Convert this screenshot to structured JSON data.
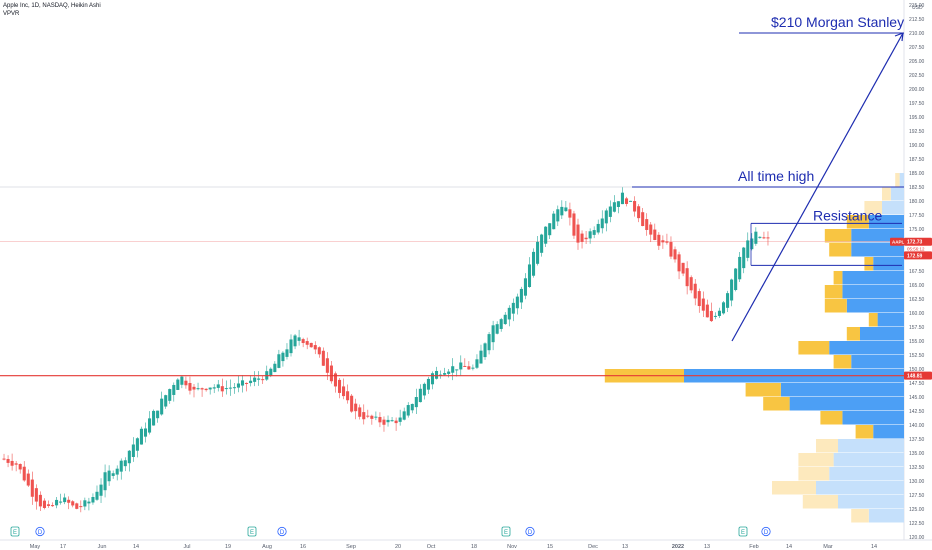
{
  "header": {
    "title": "Apple Inc, 1D, NASDAQ, Heikin Ashi",
    "indicator": "VPVR"
  },
  "chart_data": {
    "type": "candlestick",
    "title": "Apple Inc, 1D, NASDAQ, Heikin Ashi",
    "currency": "USD",
    "ylim": [
      120,
      215
    ],
    "y_ticks": [
      "120.00",
      "122.50",
      "125.00",
      "127.50",
      "130.00",
      "132.50",
      "135.00",
      "137.50",
      "140.00",
      "142.50",
      "145.00",
      "147.50",
      "150.00",
      "152.50",
      "155.00",
      "157.50",
      "160.00",
      "162.50",
      "165.00",
      "167.50",
      "170.00",
      "172.50",
      "175.00",
      "177.50",
      "180.00",
      "182.50",
      "185.00",
      "187.50",
      "190.00",
      "192.50",
      "195.00",
      "197.50",
      "200.00",
      "202.50",
      "205.00",
      "207.50",
      "210.00",
      "212.50",
      "215.00"
    ],
    "x_ticks": [
      "May",
      "17",
      "Jun",
      "14",
      "Jul",
      "19",
      "Aug",
      "16",
      "Sep",
      "20",
      "Oct",
      "18",
      "Nov",
      "15",
      "Dec",
      "13",
      "2022",
      "13",
      "Feb",
      "14",
      "Mar",
      "14"
    ],
    "series": [
      {
        "close_path": [
          [
            "May",
            134
          ],
          [
            "May",
            133
          ],
          [
            "May 10",
            128
          ],
          [
            "May 17",
            124.5
          ],
          [
            "May 24",
            127
          ],
          [
            "Jun",
            125
          ],
          [
            "Jun 7",
            126.5
          ],
          [
            "Jun 14",
            131
          ],
          [
            "Jun 21",
            133
          ],
          [
            "Jun 28",
            137
          ],
          [
            "Jul",
            141
          ],
          [
            "Jul 8",
            145
          ],
          [
            "Jul 14",
            149
          ],
          [
            "Jul 19",
            146
          ],
          [
            "Jul 26",
            147
          ],
          [
            "Aug",
            146.5
          ],
          [
            "Aug 9",
            147
          ],
          [
            "Aug 16",
            148
          ],
          [
            "Aug 23",
            149
          ],
          [
            "Aug 30",
            153
          ],
          [
            "Sep",
            156
          ],
          [
            "Sep 8",
            154
          ],
          [
            "Sep 14",
            150
          ],
          [
            "Sep 20",
            145
          ],
          [
            "Sep 27",
            142
          ],
          [
            "Oct",
            141
          ],
          [
            "Oct 8",
            140.5
          ],
          [
            "Oct 14",
            141
          ],
          [
            "Oct 18",
            145
          ],
          [
            "Oct 25",
            149
          ],
          [
            "Nov",
            150
          ],
          [
            "Nov 8",
            150.5
          ],
          [
            "Nov 15",
            150
          ],
          [
            "Nov 22",
            157
          ],
          [
            "Nov 29",
            160
          ],
          [
            "Dec",
            163
          ],
          [
            "Dec 6",
            171
          ],
          [
            "Dec 10",
            176
          ],
          [
            "Dec 13",
            180
          ],
          [
            "Dec 17",
            172
          ],
          [
            "Dec 22",
            175
          ],
          [
            "Dec 28",
            179
          ],
          [
            "2022",
            181
          ],
          [
            "Jan 4",
            178
          ],
          [
            "Jan 7",
            173
          ],
          [
            "Jan 13",
            172
          ],
          [
            "Jan 18",
            167
          ],
          [
            "Jan 21",
            162
          ],
          [
            "Jan 27",
            158
          ],
          [
            "Feb",
            163
          ],
          [
            "Feb 3",
            171
          ],
          [
            "Feb 7",
            174
          ],
          [
            "Feb 10",
            172.8
          ]
        ]
      }
    ],
    "last_price": {
      "symbol": "AAPL",
      "value": "172.73",
      "countdown": "05:56:12"
    },
    "lines": [
      {
        "label": "All time high",
        "value": 182.5
      },
      {
        "label": "Resistance",
        "values": [
          176,
          168.5
        ]
      },
      {
        "label": "",
        "value": 148.81
      },
      {
        "label": "$210 Morgan Stanley",
        "value": 210
      }
    ],
    "trend_arrow": {
      "from": [
        "Jan 27",
        155
      ],
      "to": [
        "Mar 14+",
        210
      ]
    },
    "horizontal_price_label": "148.81",
    "lower_price_label": "172.59",
    "volume_profile": {
      "price_levels": [
        122.5,
        125,
        127.5,
        130,
        132.5,
        135,
        137.5,
        140,
        142.5,
        145,
        147.5,
        150,
        152.5,
        155,
        157.5,
        160,
        162.5,
        165,
        167.5,
        170,
        172.5,
        175,
        177.5,
        180,
        182.5
      ],
      "up_volume": [
        8,
        15,
        20,
        17,
        16,
        15,
        7,
        14,
        26,
        28,
        50,
        12,
        17,
        10,
        6,
        13,
        14,
        14,
        7,
        12,
        12,
        8,
        5,
        3,
        1
      ],
      "down_volume": [
        4,
        8,
        10,
        7,
        8,
        5,
        4,
        5,
        6,
        8,
        18,
        4,
        7,
        3,
        2,
        5,
        4,
        2,
        2,
        5,
        6,
        5,
        4,
        2,
        1
      ],
      "point_of_control": 148.81,
      "value_area_colors": {
        "up": "#4c9ff5",
        "down": "#f8c542"
      },
      "outside_area_colors": {
        "up": "#c5e0fb",
        "down": "#fde9bd"
      }
    },
    "event_markers": [
      "E",
      "D",
      "E",
      "D",
      "E",
      "D",
      "E",
      "D"
    ],
    "colors": {
      "up": "#26a69a",
      "down": "#ef5350",
      "annotation": "#1e2db0",
      "support": "#e53935"
    }
  }
}
